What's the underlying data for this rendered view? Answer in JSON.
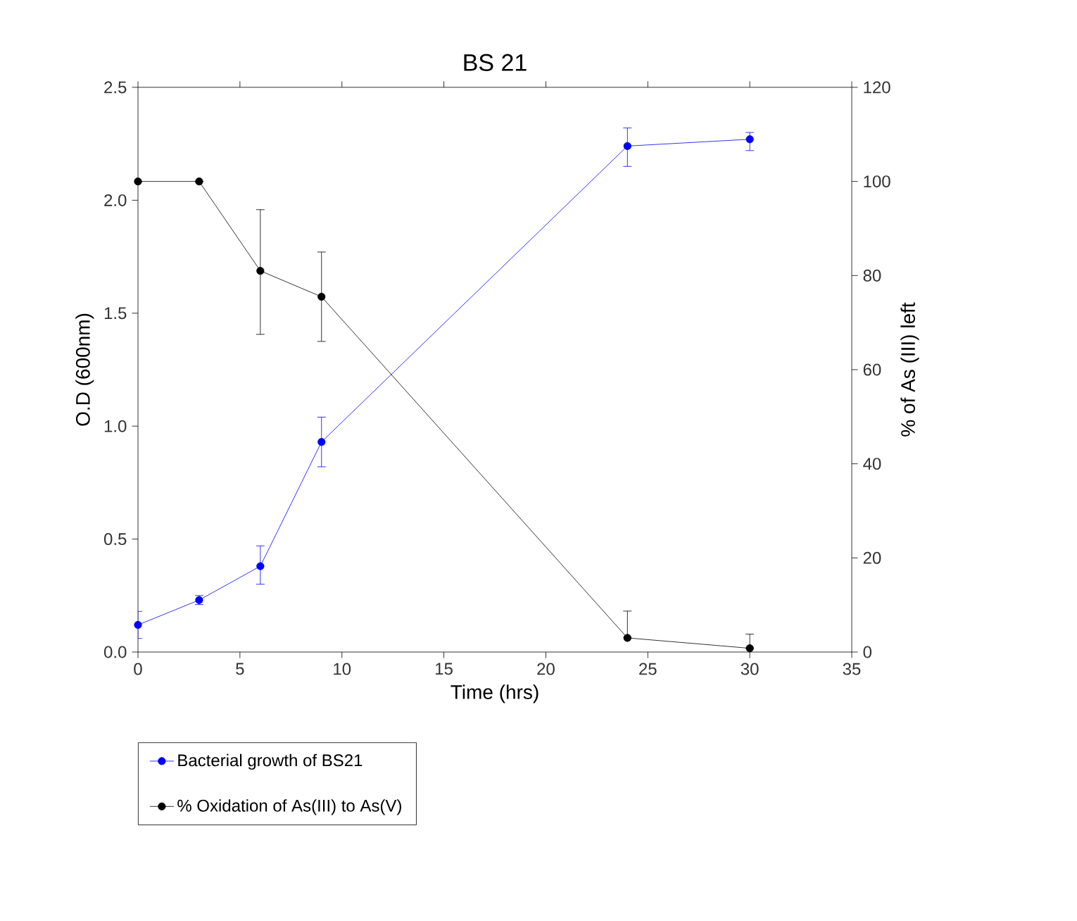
{
  "chart_data": {
    "type": "line",
    "title": "BS 21",
    "xlabel": "Time (hrs)",
    "ylabel": "O.D (600nm)",
    "y2label": "% of As (III) left",
    "xlim": [
      0,
      35
    ],
    "xticks": [
      0,
      5,
      10,
      15,
      20,
      25,
      30,
      35
    ],
    "ylim": [
      0,
      2.5
    ],
    "yticks": [
      {
        "value": 0,
        "label": "0.0"
      },
      0.5,
      {
        "value": 1,
        "label": "1.0"
      },
      1.5,
      {
        "value": 2,
        "label": "2.0"
      },
      2.5
    ],
    "y2lim": [
      0,
      120
    ],
    "y2ticks": [
      0,
      20,
      40,
      60,
      80,
      100,
      120
    ],
    "marker": "circle",
    "line_style": "solid",
    "legend": "bottom left",
    "series": [
      {
        "name": "Bacterial growth of BS21",
        "color": "#0000ff",
        "x": [
          0,
          3,
          6,
          9,
          24,
          30
        ],
        "values": [
          0.12,
          0.23,
          0.38,
          0.93,
          2.24,
          2.27
        ],
        "errors": [
          [
            0.06,
            0.18
          ],
          [
            0.21,
            0.25
          ],
          [
            0.3,
            0.47
          ],
          [
            0.82,
            1.04
          ],
          [
            2.15,
            2.32
          ],
          [
            2.22,
            2.3
          ]
        ]
      },
      {
        "name": "% Oxidation of As(III) to As(V)",
        "color": "#000000",
        "axis": "y2",
        "x": [
          0,
          3,
          6,
          9,
          24,
          30
        ],
        "values": [
          100,
          100,
          81,
          75.5,
          3,
          0.8
        ],
        "errors": [
          null,
          null,
          [
            67.5,
            94
          ],
          [
            66,
            85
          ],
          [
            3,
            8.7
          ],
          [
            0.8,
            3.8
          ]
        ]
      }
    ]
  }
}
